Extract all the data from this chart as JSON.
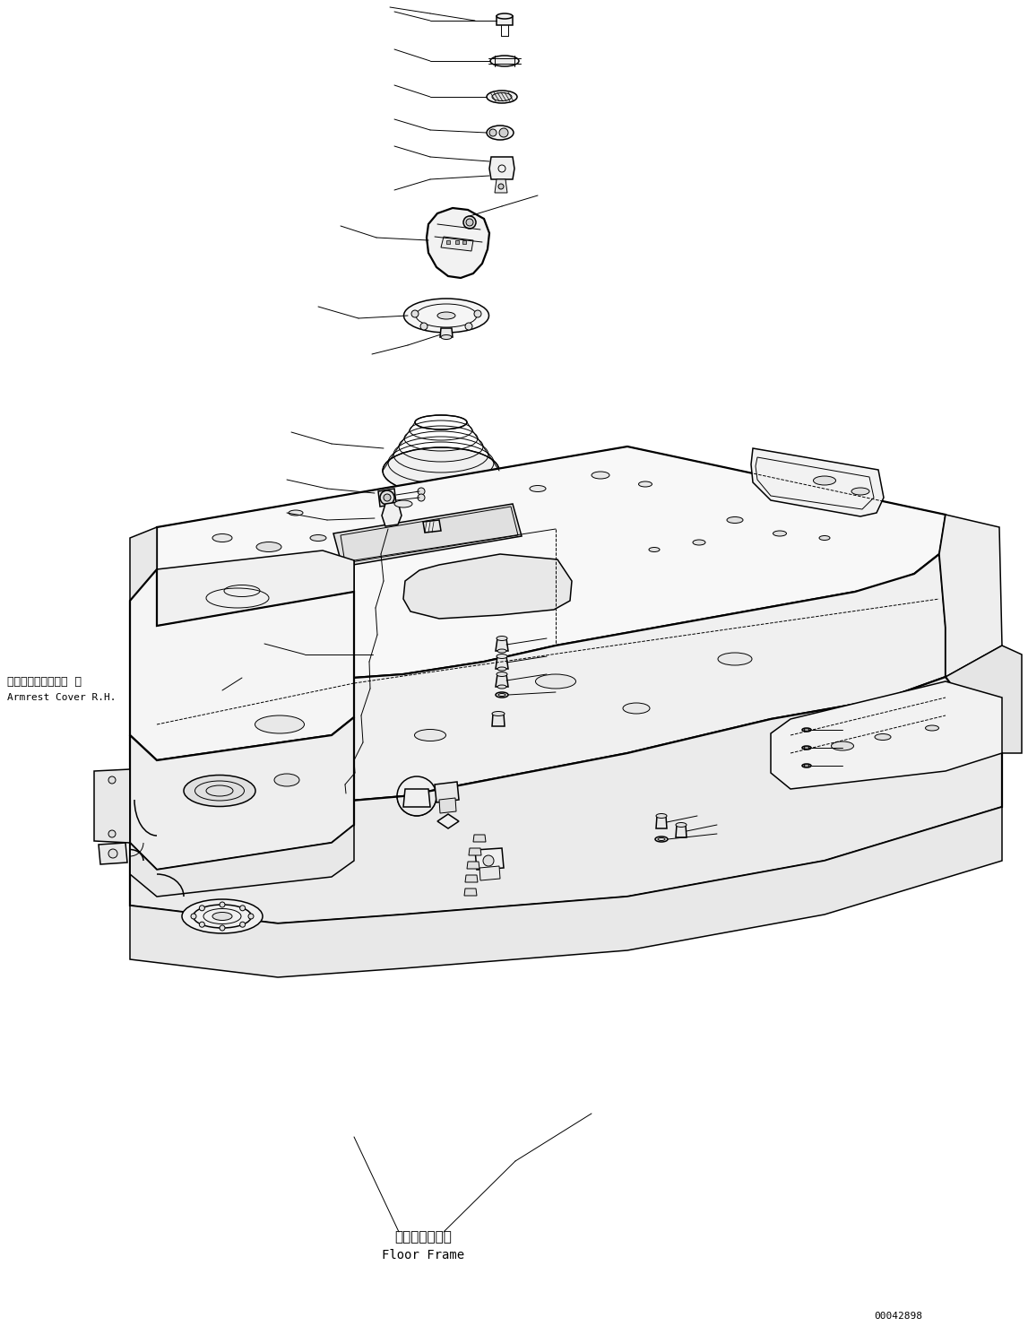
{
  "background_color": "#ffffff",
  "line_color": "#000000",
  "fig_width": 11.47,
  "fig_height": 14.89,
  "label_armrest_jp": "アームレストカバー  右",
  "label_armrest_en": "Armrest Cover R.H.",
  "label_floor_jp": "フロアフレーム",
  "label_floor_en": "Floor Frame",
  "label_code": "00042898"
}
